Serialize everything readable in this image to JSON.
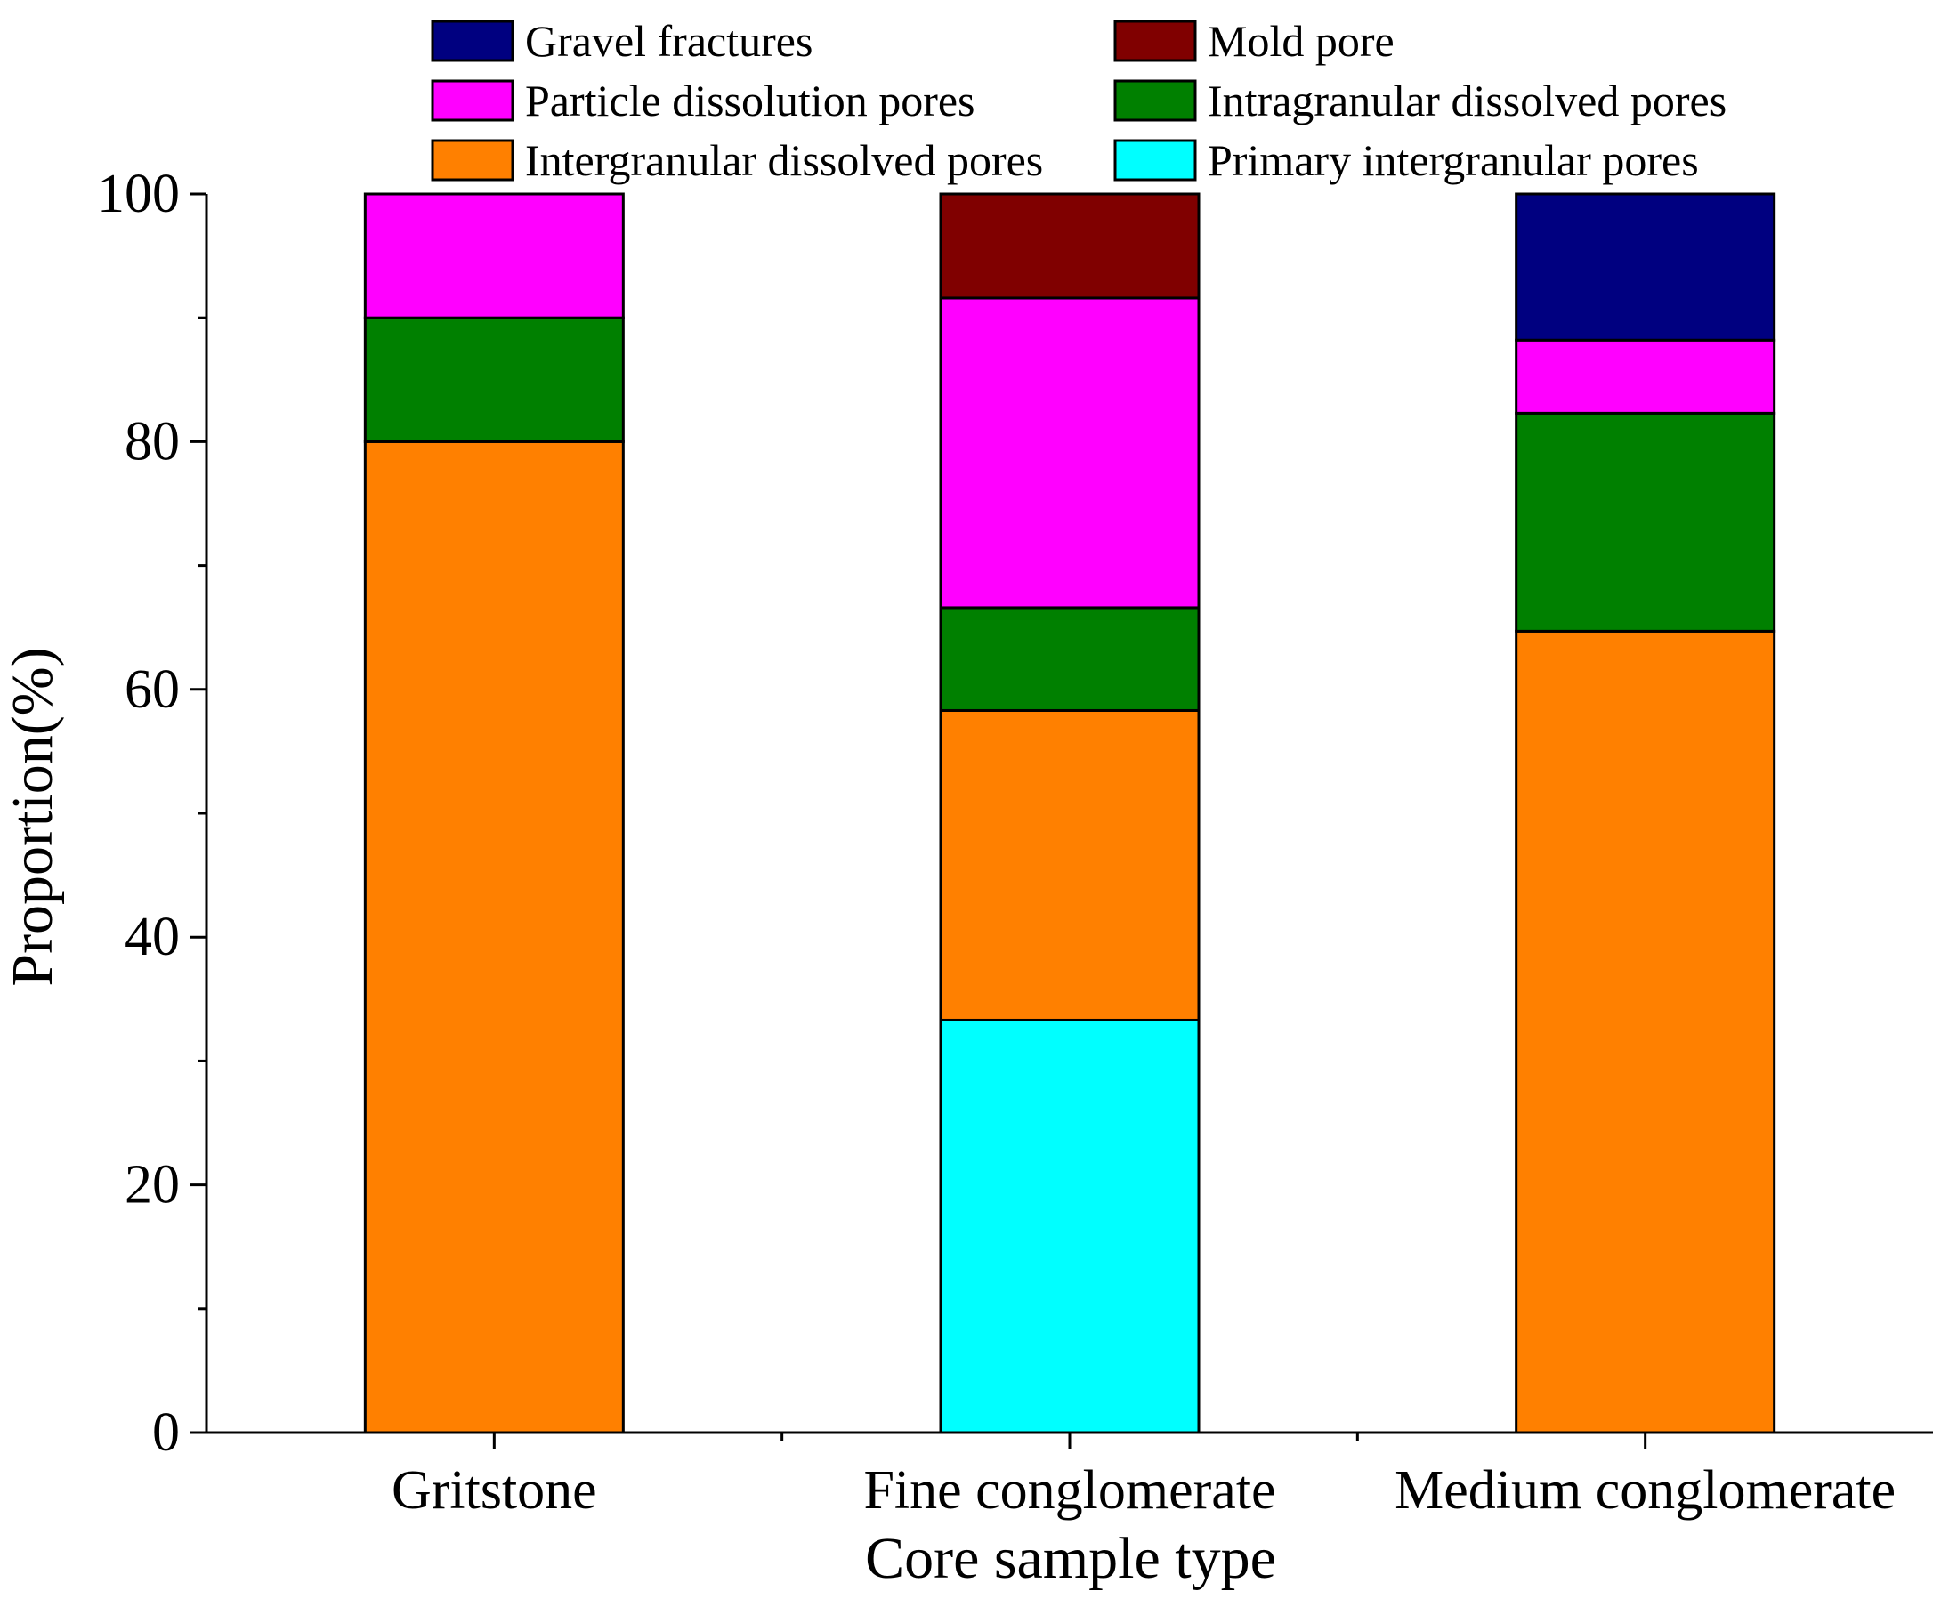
{
  "chart_data": {
    "type": "bar",
    "stacked": true,
    "title": "",
    "xlabel": "Core sample type",
    "ylabel": "Proportion(%)",
    "ylim": [
      0,
      100
    ],
    "yticks": [
      0,
      20,
      40,
      60,
      80,
      100
    ],
    "categories": [
      "Gritstone",
      "Fine conglomerate",
      "Medium conglomerate"
    ],
    "series": [
      {
        "name": "Primary intergranular pores",
        "color": "#00FFFF",
        "values": [
          0,
          33.3,
          0
        ]
      },
      {
        "name": "Intergranular dissolved pores",
        "color": "#FF8000",
        "values": [
          80,
          25.0,
          64.7
        ]
      },
      {
        "name": "Intragranular dissolved pores",
        "color": "#008000",
        "values": [
          10,
          8.3,
          17.6
        ]
      },
      {
        "name": "Particle dissolution pores",
        "color": "#FF00FF",
        "values": [
          10,
          25.0,
          5.9
        ]
      },
      {
        "name": "Mold pore",
        "color": "#800000",
        "values": [
          0,
          8.4,
          0
        ]
      },
      {
        "name": "Gravel fractures",
        "color": "#000080",
        "values": [
          0,
          0,
          11.8
        ]
      }
    ],
    "legend": {
      "position": "top",
      "order": [
        "Gravel fractures",
        "Mold pore",
        "Particle dissolution pores",
        "Intragranular dissolved pores",
        "Intergranular dissolved pores",
        "Primary intergranular pores"
      ]
    }
  }
}
